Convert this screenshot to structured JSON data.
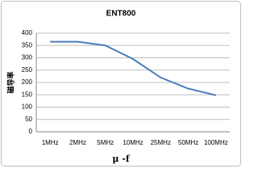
{
  "chart_data": {
    "type": "line",
    "title": "ENT800",
    "x_label": "μ -f",
    "y_label": "磁导率",
    "categories": [
      "1MHz",
      "2MHz",
      "5MHz",
      "10MHz",
      "25MHz",
      "50MHz",
      "100MHz"
    ],
    "values": [
      365,
      365,
      350,
      295,
      220,
      175,
      148
    ],
    "color": "#4a7ebb",
    "ylim": [
      0,
      400
    ],
    "yticks": [
      0,
      50,
      100,
      150,
      200,
      250,
      300,
      350,
      400
    ],
    "grid": true
  }
}
